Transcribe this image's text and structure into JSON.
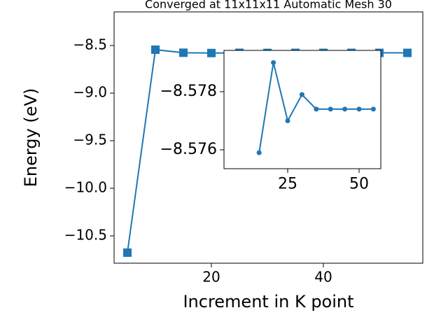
{
  "chart_data": [
    {
      "type": "line",
      "title": "Converged at 11x11x11 Automatic Mesh 30",
      "x_label": "Increment in K point",
      "y_label": "Energy (eV)",
      "x": [
        5,
        10,
        15,
        20,
        25,
        30,
        35,
        40,
        45,
        50,
        55
      ],
      "series": [
        {
          "color": "#1f77b4",
          "marker": "square",
          "values": [
            -10.676,
            -8.544,
            -8.5759,
            -8.579,
            -8.577,
            -8.5779,
            -8.5774,
            -8.5774,
            -8.5774,
            -8.5774,
            -8.5774
          ]
        }
      ],
      "xlim": [
        2.625,
        57.75
      ],
      "ylim": [
        -10.787,
        -8.147
      ],
      "xticks": [
        20,
        40
      ],
      "yticks": [
        {
          "value": -10.5,
          "label": "−10.5"
        },
        {
          "value": -10.0,
          "label": "−10.0"
        },
        {
          "value": -9.5,
          "label": "−9.5"
        },
        {
          "value": -9.0,
          "label": "−9.0"
        },
        {
          "value": -8.5,
          "label": "−8.5"
        }
      ]
    },
    {
      "type": "line",
      "x": [
        15,
        20,
        25,
        30,
        35,
        40,
        45,
        50,
        55
      ],
      "series": [
        {
          "color": "#1f77b4",
          "marker": "circle",
          "values": [
            -8.5759,
            -8.579,
            -8.577,
            -8.5779,
            -8.5774,
            -8.5774,
            -8.5774,
            -8.5774,
            -8.5774
          ]
        }
      ],
      "xlim": [
        2.7,
        57.6
      ],
      "ylim": [
        -8.57535,
        -8.57942
      ],
      "xticks": [
        25,
        50
      ],
      "yticks": [
        {
          "value": -8.578,
          "label": "−8.578"
        },
        {
          "value": -8.576,
          "label": "−8.576"
        }
      ]
    }
  ]
}
